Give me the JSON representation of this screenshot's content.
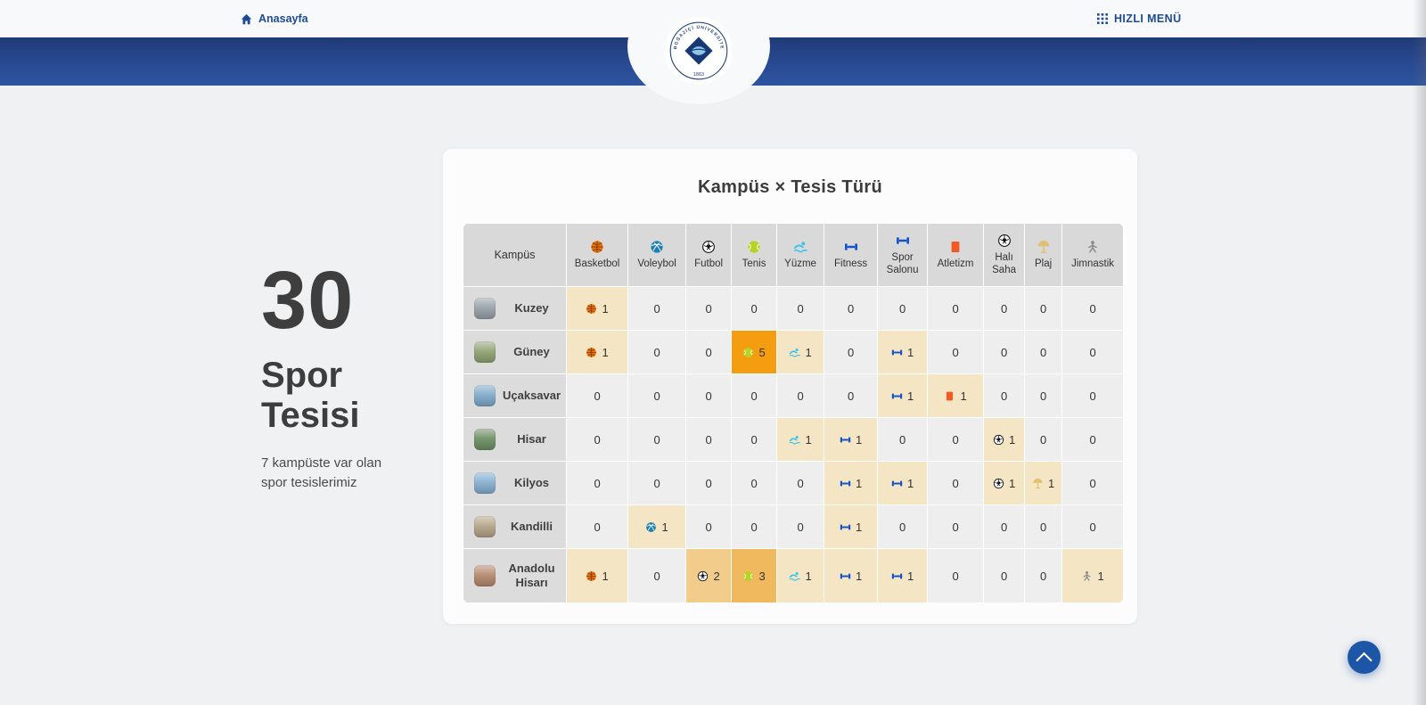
{
  "topbar": {
    "home_label": "Anasayfa",
    "quick_menu_label": "HIZLI MENÜ"
  },
  "logo": {
    "ring_text": "BOĞAZİÇİ ÜNİVERSİTESİ",
    "year": "1863"
  },
  "stats": {
    "count": "30",
    "title": "Spor Tesisi",
    "subtitle": "7 kampüste var olan spor tesislerimiz"
  },
  "matrix": {
    "title": "Kampüs × Tesis Türü",
    "corner_header": "Kampüs",
    "header_bg": "#d9d9d9",
    "campus_col_bg": "#dcdcdc",
    "value_colors": {
      "0": "#eeeeee",
      "1": "#f4e5c4",
      "2": "#f2cc8b",
      "3": "#f0b95e",
      "5": "#f59d10"
    }
  },
  "facilities": [
    {
      "label": "Basketbol",
      "icon": "basketball-icon",
      "color": "#e8720c"
    },
    {
      "label": "Voleybol",
      "icon": "volleyball-icon",
      "color": "#1c7fb3"
    },
    {
      "label": "Futbol",
      "icon": "soccer-ball-icon",
      "color": "#111111"
    },
    {
      "label": "Tenis",
      "icon": "tennis-ball-icon",
      "color": "#b7d426"
    },
    {
      "label": "Yüzme",
      "icon": "swimmer-icon",
      "color": "#36c3ee"
    },
    {
      "label": "Fitness",
      "icon": "dumbbell-icon",
      "color": "#1553c8"
    },
    {
      "label": "Spor Salonu",
      "icon": "gym-dumbbell-icon",
      "color": "#1553c8"
    },
    {
      "label": "Atletizm",
      "icon": "running-vest-icon",
      "color": "#f15a22"
    },
    {
      "label": "Halı Saha",
      "icon": "soccer-ball-icon",
      "color": "#111111"
    },
    {
      "label": "Plaj",
      "icon": "beach-umbrella-icon",
      "color": "#e0c070"
    },
    {
      "label": "Jimnastik",
      "icon": "gymnast-icon",
      "color": "#8b8b8b"
    }
  ],
  "campuses": [
    {
      "name": "Kuzey",
      "thumb_color": "#98a1a8",
      "values": [
        1,
        0,
        0,
        0,
        0,
        0,
        0,
        0,
        0,
        0,
        0
      ]
    },
    {
      "name": "Güney",
      "thumb_color": "#8fa273",
      "values": [
        1,
        0,
        0,
        5,
        1,
        0,
        1,
        0,
        0,
        0,
        0
      ]
    },
    {
      "name": "Uçaksavar",
      "thumb_color": "#7fa9c9",
      "values": [
        0,
        0,
        0,
        0,
        0,
        0,
        1,
        1,
        0,
        0,
        0
      ]
    },
    {
      "name": "Hisar",
      "thumb_color": "#6e8f63",
      "values": [
        0,
        0,
        0,
        0,
        1,
        1,
        0,
        0,
        1,
        0,
        0
      ]
    },
    {
      "name": "Kilyos",
      "thumb_color": "#85aed0",
      "values": [
        0,
        0,
        0,
        0,
        0,
        1,
        1,
        0,
        1,
        1,
        0
      ]
    },
    {
      "name": "Kandilli",
      "thumb_color": "#b3a487",
      "values": [
        0,
        1,
        0,
        0,
        0,
        1,
        0,
        0,
        0,
        0,
        0
      ]
    },
    {
      "name": "Anadolu Hisarı",
      "thumb_color": "#b5886c",
      "values": [
        1,
        0,
        2,
        3,
        1,
        1,
        1,
        0,
        0,
        0,
        1
      ]
    }
  ],
  "scroll_top_button": {
    "icon": "chevron-up-icon"
  },
  "accent_colors": {
    "nav_blue": "#1d4b96",
    "band_top": "#1f3b76",
    "band_bottom": "#2e54a0",
    "button_blue": "#1d55a7",
    "heat_max": "#f59d10"
  }
}
